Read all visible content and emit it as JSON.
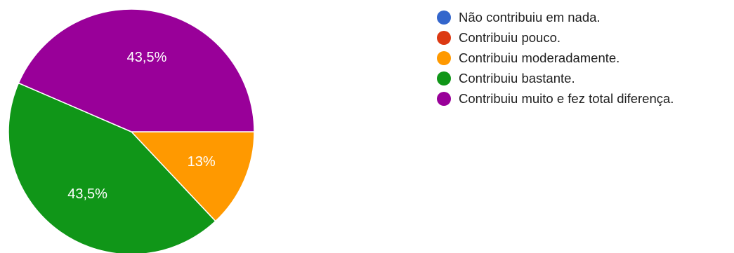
{
  "chart_data": {
    "type": "pie",
    "title": "",
    "slices": [
      {
        "label": "Não contribuiu em nada.",
        "value": 0,
        "display": "",
        "color": "#3366cc"
      },
      {
        "label": "Contribuiu pouco.",
        "value": 0,
        "display": "",
        "color": "#dc3912"
      },
      {
        "label": "Contribuiu moderadamente.",
        "value": 13,
        "display": "13%",
        "color": "#ff9900"
      },
      {
        "label": "Contribuiu bastante.",
        "value": 43.5,
        "display": "43,5%",
        "color": "#109618"
      },
      {
        "label": "Contribuiu muito e fez total diferença.",
        "value": 43.5,
        "display": "43,5%",
        "color": "#990099"
      }
    ],
    "legend_position": "right"
  }
}
